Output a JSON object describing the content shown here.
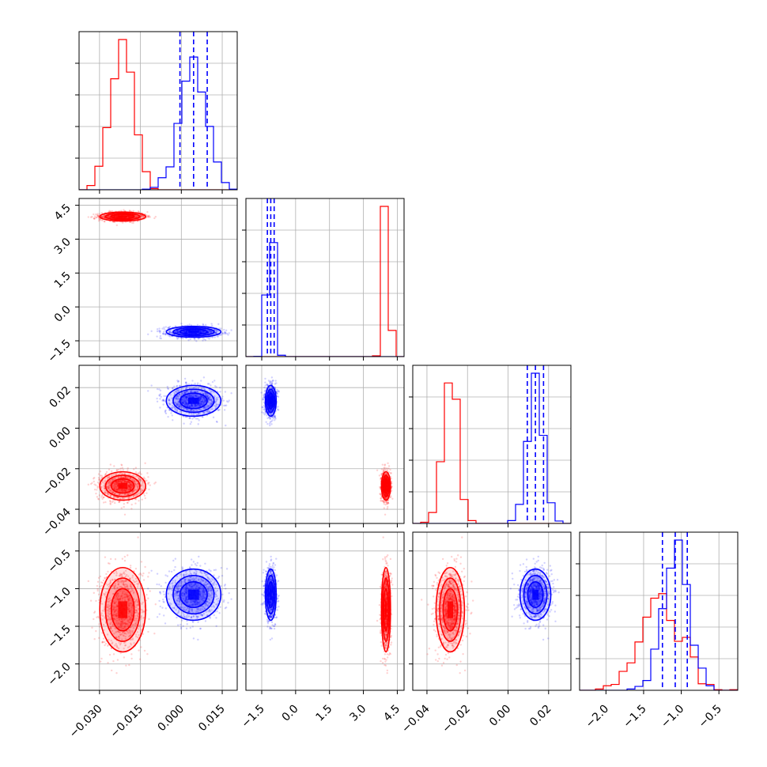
{
  "chart_data": {
    "type": "scatter",
    "subtype": "corner-plot",
    "grid": true,
    "parameters": [
      {
        "range": [
          -0.0375,
          0.0205
        ],
        "ticks": [
          -0.03,
          -0.015,
          0.0,
          0.015
        ],
        "tick_labels": [
          "−0.030",
          "−0.015",
          "0.000",
          "0.015"
        ]
      },
      {
        "range": [
          -2.2,
          4.8
        ],
        "ticks": [
          -1.5,
          0.0,
          1.5,
          3.0,
          4.5
        ],
        "tick_labels": [
          "−1.5",
          "0.0",
          "1.5",
          "3.0",
          "4.5"
        ]
      },
      {
        "range": [
          -0.047,
          0.031
        ],
        "ticks": [
          -0.04,
          -0.02,
          0.0,
          0.02
        ],
        "tick_labels": [
          "−0.04",
          "−0.02",
          "0.00",
          "0.02"
        ]
      },
      {
        "range": [
          -2.35,
          -0.25
        ],
        "ticks": [
          -2.0,
          -1.5,
          -1.0,
          -0.5
        ],
        "tick_labels": [
          "−2.0",
          "−1.5",
          "−1.0",
          "−0.5"
        ]
      }
    ],
    "series": [
      {
        "color": "#ff0000",
        "mean": [
          -0.0215,
          4.0,
          -0.0285,
          -1.28
        ],
        "std": [
          0.0042,
          0.1,
          0.0035,
          0.28
        ]
      },
      {
        "color": "#0000ff",
        "mean": [
          0.0045,
          -1.1,
          0.0135,
          -1.08
        ],
        "std": [
          0.005,
          0.12,
          0.0038,
          0.17
        ]
      }
    ],
    "quantile_lines": {
      "color": "#0000ff",
      "values": [
        [
          -0.0005,
          0.0045,
          0.0095
        ],
        [
          -1.25,
          -1.1,
          -0.95
        ],
        [
          0.0095,
          0.0135,
          0.0175
        ],
        [
          -1.25,
          -1.08,
          -0.92
        ]
      ]
    }
  }
}
